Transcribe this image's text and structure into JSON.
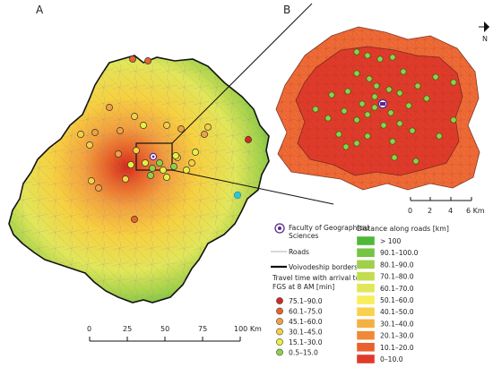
{
  "panels": {
    "a": "A",
    "b": "B"
  },
  "north_arrow": "N",
  "legend_left": {
    "fgs_label": "Faculty of Geographical Sciences",
    "fgs_label_line1": "Faculty of Geographical",
    "fgs_label_line2": "Sciences",
    "roads": "Roads",
    "borders": "Voivodeship borders",
    "travel_title_line1": "Travel time with arrival to",
    "travel_title_line2": "FGS at 8 AM [min]",
    "classes": [
      {
        "label": "75.1–90.0",
        "color": "#d42a1e"
      },
      {
        "label": "60.1–75.0",
        "color": "#e8632a"
      },
      {
        "label": "45.1–60.0",
        "color": "#f2a040"
      },
      {
        "label": "30.1–45.0",
        "color": "#f7d040"
      },
      {
        "label": "15.1–30.0",
        "color": "#e8f040"
      },
      {
        "label": "0.5–15.0",
        "color": "#8fd048"
      }
    ]
  },
  "legend_right": {
    "title": "Distance along roads [km]",
    "classes": [
      {
        "label": "> 100",
        "color": "#4fb83a"
      },
      {
        "label": "90.1–100.0",
        "color": "#76c443"
      },
      {
        "label": "80.1–90.0",
        "color": "#9fd04a"
      },
      {
        "label": "70.1–80.0",
        "color": "#c3dc52"
      },
      {
        "label": "60.1–70.0",
        "color": "#e2e65a"
      },
      {
        "label": "50.1–60.0",
        "color": "#f7ee5c"
      },
      {
        "label": "40.1–50.0",
        "color": "#f8d24e"
      },
      {
        "label": "30.1–40.0",
        "color": "#f5b042"
      },
      {
        "label": "20.1–30.0",
        "color": "#ef8a38"
      },
      {
        "label": "10.1–20.0",
        "color": "#e8612f"
      },
      {
        "label": "0–10.0",
        "color": "#e03b2a"
      }
    ]
  },
  "scale_main": {
    "ticks": [
      "0",
      "25",
      "50",
      "75",
      "100 Km"
    ]
  },
  "scale_inset": {
    "ticks": [
      "0",
      "2",
      "4",
      "6 Km"
    ]
  },
  "colors": {
    "inset_fill": "#e03b2a",
    "inset_outer": "#ef6a35",
    "accent_point": "#2ec4d6"
  }
}
